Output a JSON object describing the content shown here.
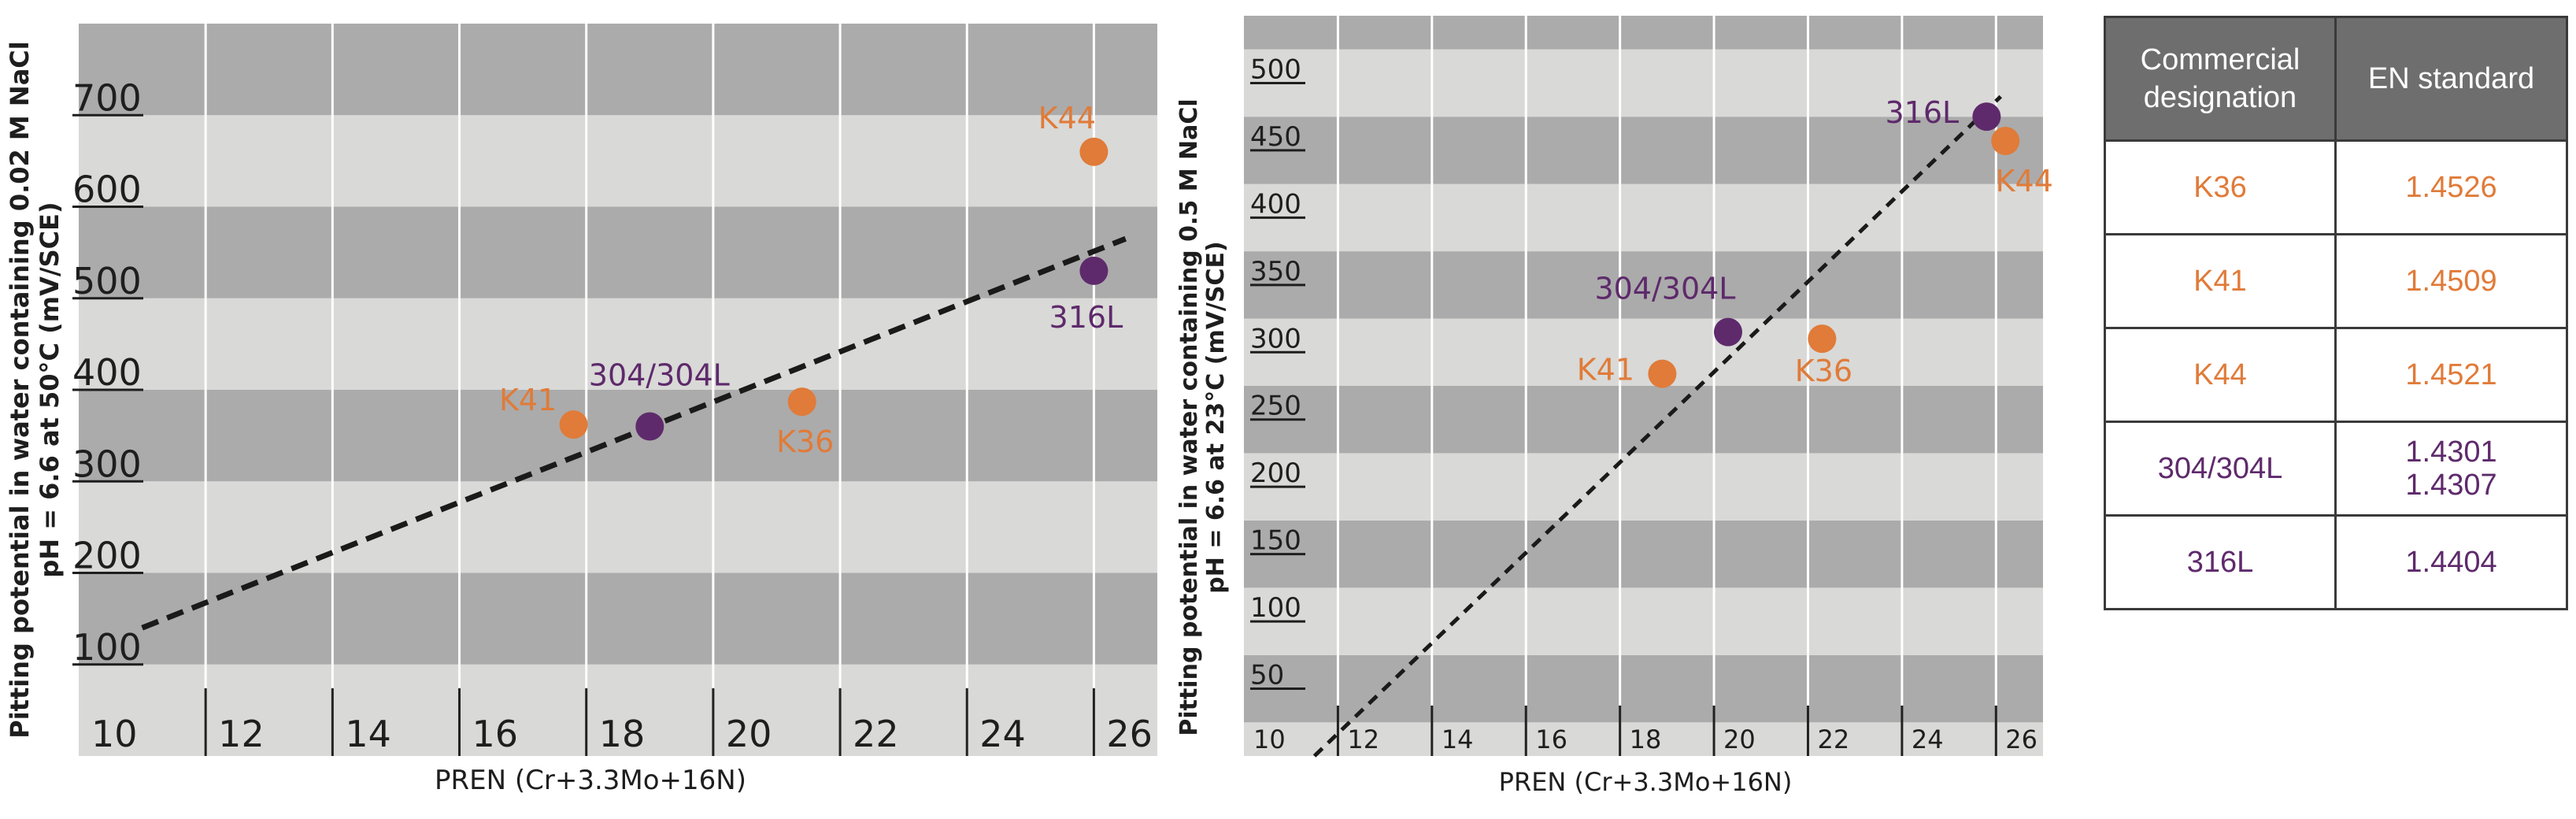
{
  "colors": {
    "orange": "#e07b39",
    "purple": "#5e2a6b",
    "band_dark": "#ababab",
    "band_light": "#d9d9d7",
    "trend": "#1a1a1a"
  },
  "chart_data": [
    {
      "type": "scatter",
      "title": "",
      "xlabel": "PREN (Cr+3.3Mo+16N)",
      "ylabel_line1": "Pitting potential in water containing 0.02 M NaCl",
      "ylabel_line2": "pH = 6.6 at 50°C (mV/SCE)",
      "xlim": [
        10,
        27
      ],
      "ylim": [
        0,
        800
      ],
      "x_ticks": [
        "10",
        "12",
        "14",
        "16",
        "18",
        "20",
        "22",
        "24",
        "26"
      ],
      "y_ticks": [
        "100",
        "200",
        "300",
        "400",
        "500",
        "600",
        "700"
      ],
      "grid": true,
      "points": [
        {
          "label": "K44",
          "x": 26,
          "y": 660,
          "color": "orange"
        },
        {
          "label": "316L",
          "x": 26,
          "y": 530,
          "color": "purple"
        },
        {
          "label": "K41",
          "x": 17.8,
          "y": 362,
          "color": "orange"
        },
        {
          "label": "304/304L",
          "x": 19,
          "y": 360,
          "color": "purple"
        },
        {
          "label": "K36",
          "x": 21.4,
          "y": 387,
          "color": "orange"
        }
      ],
      "trendline": {
        "x": [
          11,
          26.5
        ],
        "y": [
          140,
          565
        ]
      }
    },
    {
      "type": "scatter",
      "title": "",
      "xlabel": "PREN (Cr+3.3Mo+16N)",
      "ylabel_line1": "Pitting potential in water containing 0.5 M NaCl",
      "ylabel_line2": "pH = 6.6 at 23°C (mV/SCE)",
      "xlim": [
        10,
        27
      ],
      "ylim": [
        0,
        550
      ],
      "x_ticks": [
        "10",
        "12",
        "14",
        "16",
        "18",
        "20",
        "22",
        "24",
        "26"
      ],
      "y_ticks": [
        "50",
        "100",
        "150",
        "200",
        "250",
        "300",
        "350",
        "400",
        "450",
        "500"
      ],
      "grid": true,
      "points": [
        {
          "label": "316L",
          "x": 25.8,
          "y": 475,
          "color": "purple"
        },
        {
          "label": "K44",
          "x": 26.2,
          "y": 457,
          "color": "orange"
        },
        {
          "label": "304/304L",
          "x": 20.3,
          "y": 315,
          "color": "purple"
        },
        {
          "label": "K41",
          "x": 18.9,
          "y": 284,
          "color": "orange"
        },
        {
          "label": "K36",
          "x": 22.3,
          "y": 310,
          "color": "orange"
        }
      ],
      "trendline": {
        "x": [
          11.5,
          26.1
        ],
        "y": [
          0,
          490
        ]
      }
    }
  ],
  "table": {
    "headers": [
      "Commercial designation",
      "EN standard"
    ],
    "rows": [
      {
        "designation": "K36",
        "en": [
          "1.4526"
        ],
        "color": "orange"
      },
      {
        "designation": "K41",
        "en": [
          "1.4509"
        ],
        "color": "orange"
      },
      {
        "designation": "K44",
        "en": [
          "1.4521"
        ],
        "color": "orange"
      },
      {
        "designation": "304/304L",
        "en": [
          "1.4301",
          "1.4307"
        ],
        "color": "purple"
      },
      {
        "designation": "316L",
        "en": [
          "1.4404"
        ],
        "color": "purple"
      }
    ]
  }
}
